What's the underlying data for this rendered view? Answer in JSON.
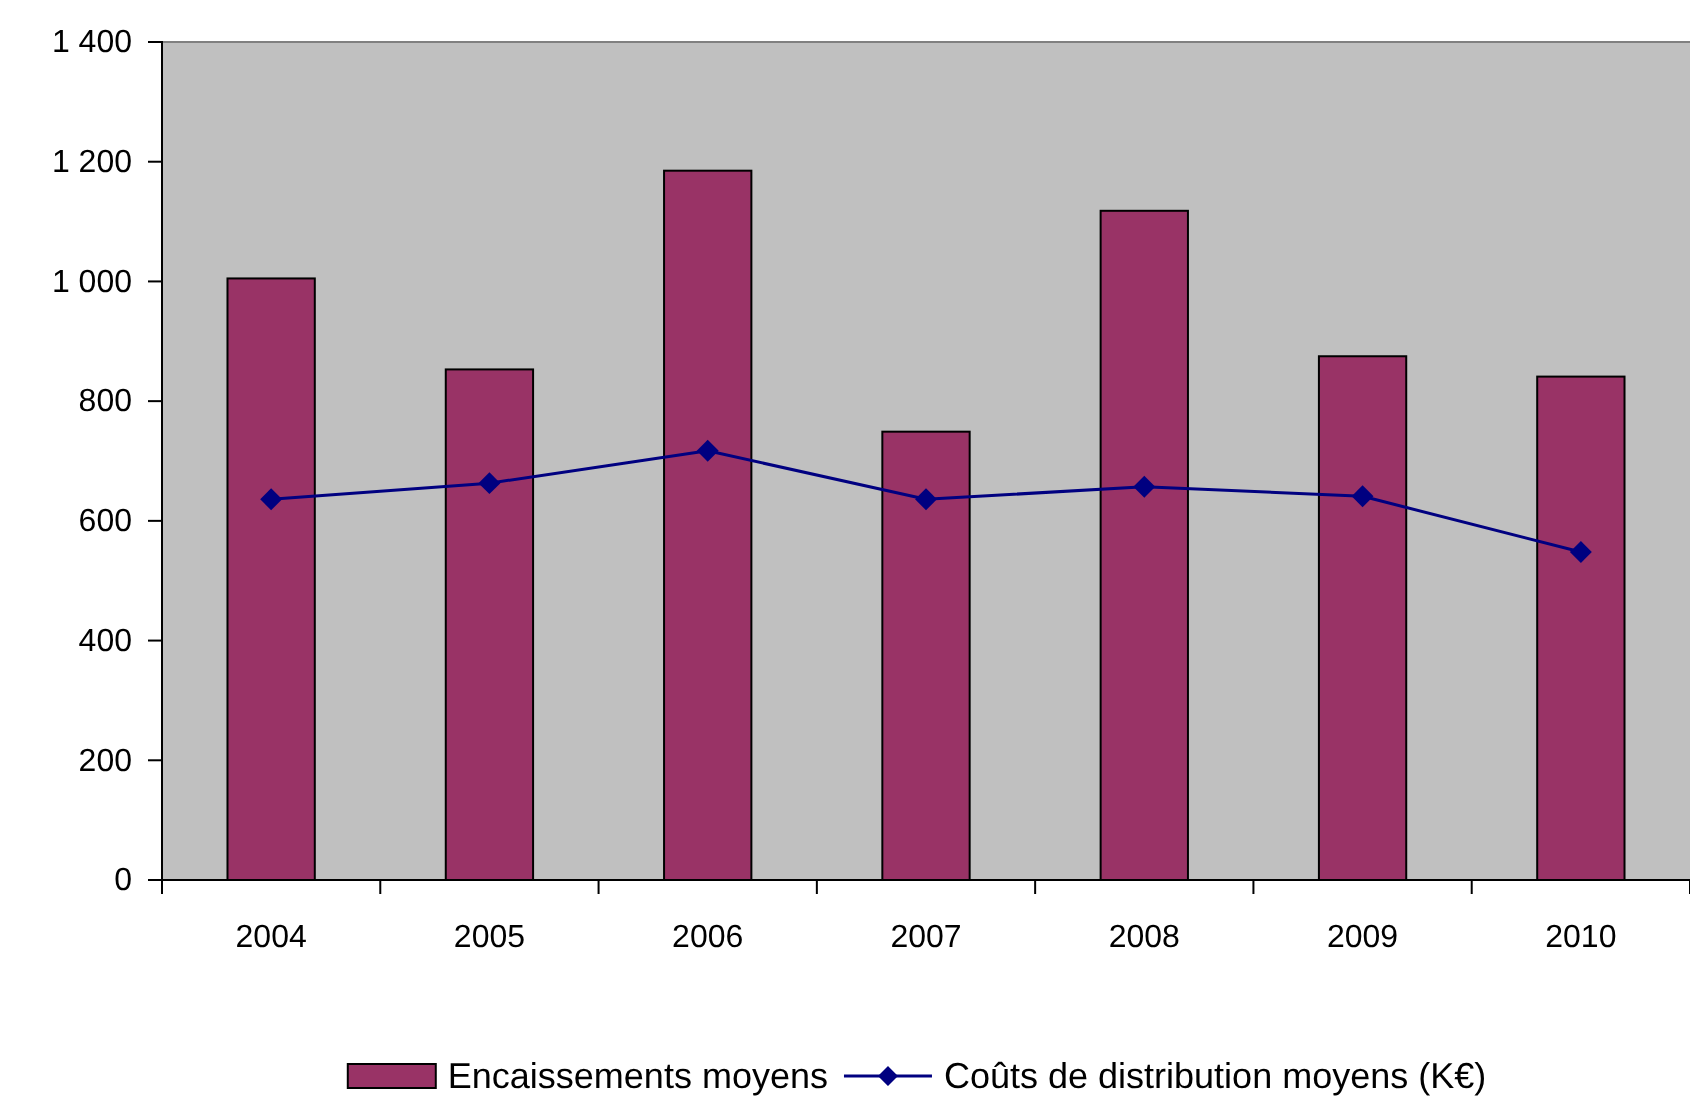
{
  "chart_data": {
    "type": "bar",
    "categories": [
      "2004",
      "2005",
      "2006",
      "2007",
      "2008",
      "2009",
      "2010"
    ],
    "series": [
      {
        "name": "Encaissements moyens",
        "color": "#993366",
        "values": [
          1005,
          853,
          1185,
          749,
          1118,
          875,
          841
        ]
      },
      {
        "name": "Coûts de distribution moyens (K€)",
        "type": "line",
        "color": "#000080",
        "marker": "diamond",
        "values": [
          636,
          663,
          717,
          636,
          657,
          641,
          548
        ]
      }
    ],
    "ylim": [
      0,
      1400
    ],
    "yticks": [
      0,
      {
        "value": 200,
        "label": "200"
      },
      {
        "value": 400,
        "label": "400"
      },
      {
        "value": 600,
        "label": "600"
      },
      {
        "value": 800,
        "label": "800"
      },
      {
        "value": 1000,
        "label": "1 000"
      },
      {
        "value": 1200,
        "label": "1 200"
      },
      {
        "value": 1400,
        "label": "1 400"
      }
    ],
    "grid": false,
    "legend": "bottom"
  }
}
